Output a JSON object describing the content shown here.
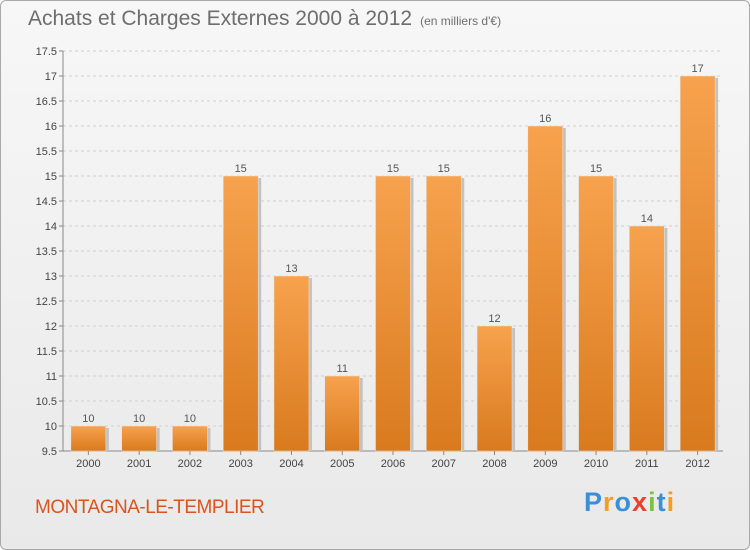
{
  "header": {
    "title": "Achats et Charges Externes 2000 à 2012",
    "unit": "(en milliers d'€)"
  },
  "footer": {
    "commune": "MONTAGNA-LE-TEMPLIER",
    "logo_letters": [
      "P",
      "r",
      "o",
      "x",
      "i",
      "t",
      "i"
    ],
    "logo_colors": [
      "#3a8fd6",
      "#f0a020",
      "#3a8fd6",
      "#e8402a",
      "#7cc242",
      "#3a8fd6",
      "#f0a020"
    ]
  },
  "colors": {
    "bar_top": "#f7a24e",
    "bar_bottom": "#d97a1e",
    "bar_shadow": "#c2c2c2",
    "grid": "#cfcfcf"
  },
  "chart_data": {
    "type": "bar",
    "categories": [
      "2000",
      "2001",
      "2002",
      "2003",
      "2004",
      "2005",
      "2006",
      "2007",
      "2008",
      "2009",
      "2010",
      "2011",
      "2012"
    ],
    "values": [
      10,
      10,
      10,
      15,
      13,
      11,
      15,
      15,
      12,
      16,
      15,
      14,
      17
    ],
    "ylim": [
      9.5,
      17.5
    ],
    "yticks": [
      9.5,
      10,
      10.5,
      11,
      11.5,
      12,
      12.5,
      13,
      13.5,
      14,
      14.5,
      15,
      15.5,
      16,
      16.5,
      17,
      17.5
    ],
    "grid": true
  }
}
